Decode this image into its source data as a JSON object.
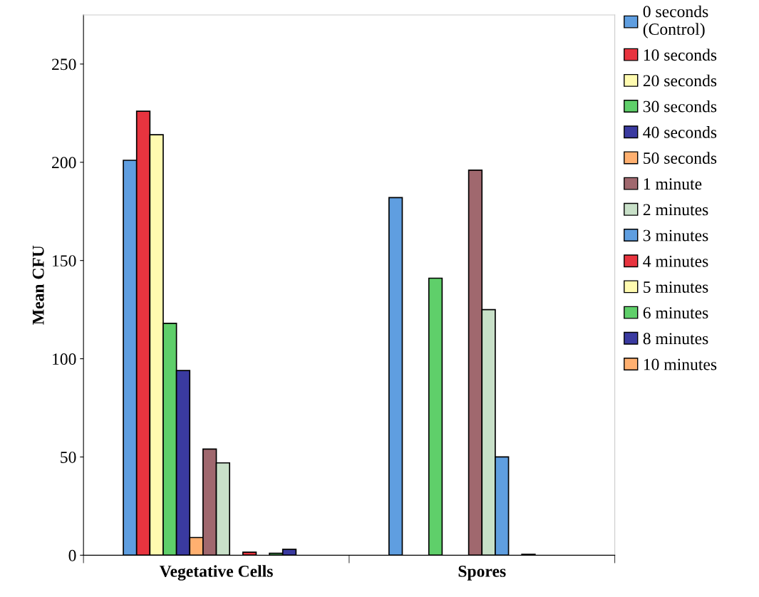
{
  "chart_data": {
    "type": "bar",
    "ylabel": "Mean CFU",
    "categories": [
      "Vegetative Cells",
      "Spores"
    ],
    "ylim": [
      0,
      275
    ],
    "yticks": [
      0,
      50,
      100,
      150,
      200,
      250
    ],
    "grid": false,
    "legend": "right",
    "series": [
      {
        "name": "0 seconds\n(Control)",
        "color": "#5f9ee0",
        "values": [
          201,
          182
        ]
      },
      {
        "name": "10 seconds",
        "color": "#e8343f",
        "values": [
          226,
          null
        ]
      },
      {
        "name": "20 seconds",
        "color": "#fffbb0",
        "values": [
          214,
          null
        ]
      },
      {
        "name": "30 seconds",
        "color": "#5fcf6a",
        "values": [
          118,
          141
        ]
      },
      {
        "name": "40 seconds",
        "color": "#3a3aa0",
        "values": [
          94,
          null
        ]
      },
      {
        "name": "50 seconds",
        "color": "#ffb070",
        "values": [
          9,
          null
        ]
      },
      {
        "name": "1 minute",
        "color": "#a0686e",
        "values": [
          54,
          196
        ]
      },
      {
        "name": "2 minutes",
        "color": "#c8e0c8",
        "values": [
          47,
          125
        ]
      },
      {
        "name": "3 minutes",
        "color": "#5f9ee0",
        "values": [
          null,
          50
        ]
      },
      {
        "name": "4 minutes",
        "color": "#e8343f",
        "values": [
          1.5,
          null
        ]
      },
      {
        "name": "5 minutes",
        "color": "#fffbb0",
        "values": [
          null,
          0.5
        ]
      },
      {
        "name": "6 minutes",
        "color": "#5fcf6a",
        "values": [
          1,
          null
        ]
      },
      {
        "name": "8 minutes",
        "color": "#3a3aa0",
        "values": [
          3,
          null
        ]
      },
      {
        "name": "10 minutes",
        "color": "#ffb070",
        "values": [
          null,
          null
        ]
      }
    ]
  }
}
